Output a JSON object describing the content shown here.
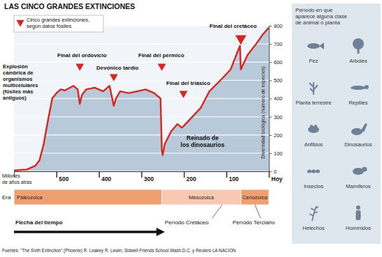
{
  "chart_data": {
    "type": "line",
    "title": "LAS CINCO GRANDES EXTINCIONES",
    "legend_text": [
      "Cinco grandes extinciones,",
      "según datos fósiles"
    ],
    "x_label": [
      "Millones",
      "de años atrás"
    ],
    "y_label": "Diversidad biológica (número de especies)",
    "x": [
      600,
      570,
      550,
      540,
      530,
      520,
      510,
      500,
      490,
      480,
      460,
      450,
      445,
      440,
      430,
      410,
      390,
      375,
      365,
      360,
      350,
      330,
      310,
      290,
      270,
      255,
      252,
      250,
      245,
      230,
      215,
      205,
      200,
      180,
      160,
      140,
      110,
      90,
      75,
      68,
      66,
      62,
      50,
      30,
      15,
      0
    ],
    "values": [
      5,
      10,
      30,
      60,
      150,
      280,
      400,
      430,
      450,
      445,
      470,
      450,
      370,
      420,
      450,
      460,
      440,
      470,
      360,
      400,
      440,
      430,
      440,
      450,
      430,
      400,
      120,
      90,
      150,
      220,
      260,
      240,
      250,
      300,
      350,
      440,
      510,
      560,
      650,
      690,
      560,
      580,
      640,
      700,
      750,
      790
    ],
    "color": "#d7261e",
    "xlim": [
      600,
      0
    ],
    "xticks": [
      500,
      400,
      300,
      200,
      100,
      {
        "value": 0,
        "label": "Hoy"
      }
    ],
    "ylim": [
      0,
      800
    ],
    "yticks": [
      0,
      100,
      200,
      300,
      400,
      500,
      600,
      700,
      800
    ],
    "grid": true,
    "extinctions": {
      "x": [
        445,
        365,
        252,
        201,
        66
      ],
      "labels": [
        "Final del ordovício",
        "Devónico tardío",
        "Final del pérmico",
        "Final del triásico",
        "Final del cretáceo"
      ]
    },
    "annotations": [
      [
        "Explosión",
        "cámbrica de",
        "organismos",
        "multicelulares",
        "(fósiles más",
        "antiguos)"
      ],
      [
        "Reinado de",
        "los dinosaurios"
      ]
    ],
    "era_label": "Era",
    "eras": [
      {
        "name": "Paleozoica",
        "start": 600,
        "end": 252
      },
      {
        "name": "Mesozoica",
        "start": 252,
        "end": 66
      },
      {
        "name": "Cenozoica",
        "start": 66,
        "end": 0
      }
    ],
    "periods": [
      "Período Cretáceo",
      "Período Terciario"
    ],
    "time_arrow": "Flecha del tiempo",
    "side_panel": {
      "title": [
        "Período en que",
        "aparece alguna clase",
        "de animal o planta"
      ],
      "items": [
        "Pez",
        "Arboles",
        "Planta terrestre",
        "Reptiles",
        "Anfibios",
        "Dinosaurios",
        "Insectos",
        "Mamíferos",
        "Helechos",
        "Homínidos"
      ]
    },
    "source": "Fuentes: \"The Sixth Extinction\" (Phoenix) R. Leakey R. Lewin, Sidwell Friends School Wash.D.C. y Reuters LA NACION"
  }
}
